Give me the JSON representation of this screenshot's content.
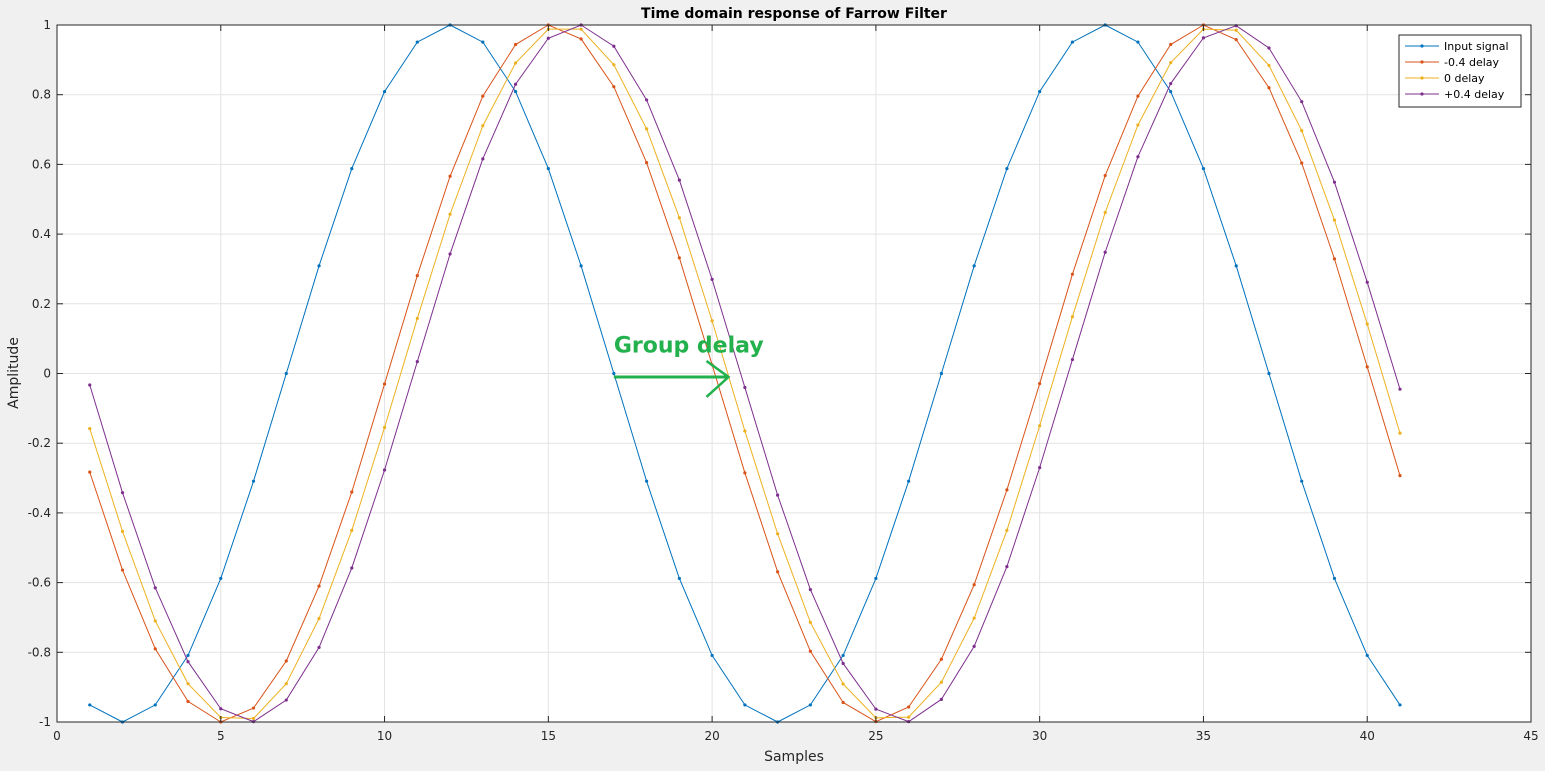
{
  "chart_data": {
    "type": "line",
    "title": "Time domain response of Farrow Filter",
    "xlabel": "Samples",
    "ylabel": "Amplitude",
    "xlim": [
      0,
      45
    ],
    "ylim": [
      -1,
      1
    ],
    "xticks": [
      "0",
      "5",
      "10",
      "15",
      "20",
      "25",
      "30",
      "35",
      "40",
      "45"
    ],
    "yticks": [
      "1",
      "0.8",
      "0.6",
      "0.4",
      "0.2",
      "0",
      "-0.2",
      "-0.4",
      "-0.6",
      "-0.8",
      "-1"
    ],
    "grid": true,
    "legend_position": "top-right",
    "x": [
      1,
      2,
      3,
      4,
      5,
      6,
      7,
      8,
      9,
      10,
      11,
      12,
      13,
      14,
      15,
      16,
      17,
      18,
      19,
      20,
      21,
      22,
      23,
      24,
      25,
      26,
      27,
      28,
      29,
      30,
      31,
      32,
      33,
      34,
      35,
      36,
      37,
      38,
      39,
      40,
      41
    ],
    "series": [
      {
        "name": "Input signal",
        "color": "#0072bd",
        "values": [
          -0.951,
          -1.0,
          -0.951,
          -0.809,
          -0.588,
          -0.309,
          0.0,
          0.309,
          0.588,
          0.809,
          0.951,
          1.0,
          0.951,
          0.809,
          0.588,
          0.309,
          0.0,
          -0.309,
          -0.588,
          -0.809,
          -0.951,
          -1.0,
          -0.951,
          -0.809,
          -0.588,
          -0.309,
          0.0,
          0.309,
          0.588,
          0.809,
          0.951,
          1.0,
          0.951,
          0.809,
          0.588,
          0.309,
          0.0,
          -0.309,
          -0.588,
          -0.809,
          -0.951
        ]
      },
      {
        "name": "-0.4 delay",
        "color": "#d95319",
        "values": [
          -0.283,
          -0.564,
          -0.79,
          -0.941,
          -1.0,
          -0.96,
          -0.825,
          -0.61,
          -0.34,
          -0.03,
          0.281,
          0.566,
          0.796,
          0.944,
          1.0,
          0.96,
          0.823,
          0.605,
          0.332,
          0.025,
          -0.285,
          -0.569,
          -0.797,
          -0.944,
          -0.999,
          -0.957,
          -0.82,
          -0.606,
          -0.334,
          -0.029,
          0.285,
          0.568,
          0.796,
          0.944,
          1.0,
          0.958,
          0.82,
          0.604,
          0.329,
          0.019,
          -0.293
        ]
      },
      {
        "name": "0 delay",
        "color": "#edb120",
        "values": [
          -0.158,
          -0.453,
          -0.71,
          -0.89,
          -0.987,
          -0.99,
          -0.89,
          -0.703,
          -0.45,
          -0.155,
          0.158,
          0.457,
          0.711,
          0.891,
          0.988,
          0.988,
          0.886,
          0.702,
          0.447,
          0.151,
          -0.165,
          -0.46,
          -0.714,
          -0.891,
          -0.988,
          -0.986,
          -0.886,
          -0.702,
          -0.45,
          -0.15,
          0.163,
          0.462,
          0.713,
          0.892,
          0.988,
          0.985,
          0.884,
          0.697,
          0.44,
          0.142,
          -0.171
        ]
      },
      {
        "name": "+0.4 delay",
        "color": "#7e2f8e",
        "values": [
          -0.033,
          -0.342,
          -0.615,
          -0.827,
          -0.962,
          -0.999,
          -0.937,
          -0.786,
          -0.558,
          -0.277,
          0.034,
          0.343,
          0.616,
          0.83,
          0.962,
          1.0,
          0.939,
          0.785,
          0.555,
          0.27,
          -0.04,
          -0.349,
          -0.62,
          -0.832,
          -0.963,
          -0.999,
          -0.935,
          -0.783,
          -0.554,
          -0.27,
          0.04,
          0.348,
          0.622,
          0.832,
          0.963,
          0.998,
          0.934,
          0.78,
          0.549,
          0.262,
          -0.045
        ]
      }
    ],
    "annotations": [
      {
        "text": "Group delay",
        "color": "#22b14c",
        "text_at": [
          17,
          0.06
        ],
        "arrow_from": [
          17,
          -0.01
        ],
        "arrow_to": [
          20.5,
          -0.01
        ]
      }
    ]
  }
}
